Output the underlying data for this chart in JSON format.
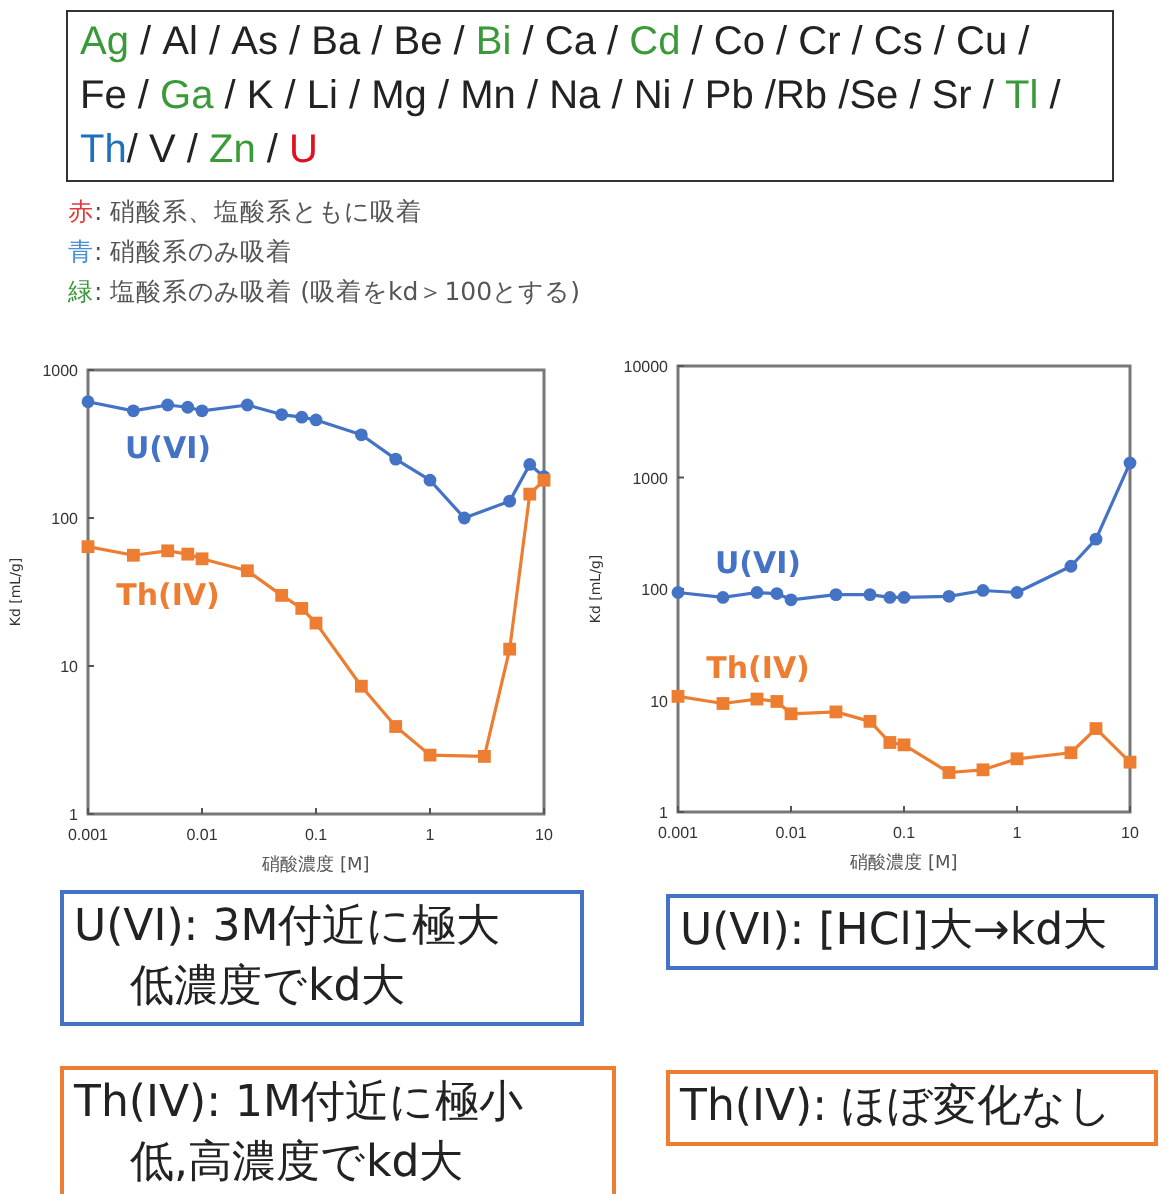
{
  "chart_data": [
    {
      "type": "other",
      "categories": [
        "Ag",
        " / ",
        "Al",
        " / ",
        "As",
        " / ",
        "Ba",
        " / ",
        "Be",
        " / ",
        "Bi",
        " / ",
        "Ca",
        " / ",
        "Cd",
        " / ",
        "Co",
        " / ",
        "Cr",
        " / ",
        "Cs",
        " / ",
        "Cu",
        " / ",
        "Fe",
        " / ",
        "Ga",
        " / ",
        "K",
        " / ",
        "Li",
        " / ",
        "Mg",
        " / ",
        "Mn",
        " / ",
        "Na",
        " / ",
        "Ni",
        " / ",
        "Pb",
        " /",
        "Rb",
        " /",
        "Se",
        " / ",
        "Sr",
        " / ",
        "Tl",
        " / ",
        "Th",
        "/ ",
        "V",
        " / ",
        "Zn",
        " / ",
        "U"
      ],
      "colors": [
        "#3a9a3a",
        "#222222",
        "#222222",
        "#222222",
        "#222222",
        "#222222",
        "#222222",
        "#222222",
        "#222222",
        "#222222",
        "#3a9a3a",
        "#222222",
        "#222222",
        "#222222",
        "#3a9a3a",
        "#222222",
        "#222222",
        "#222222",
        "#222222",
        "#222222",
        "#222222",
        "#222222",
        "#222222",
        "#222222",
        "#222222",
        "#222222",
        "#3a9a3a",
        "#222222",
        "#222222",
        "#222222",
        "#222222",
        "#222222",
        "#222222",
        "#222222",
        "#222222",
        "#222222",
        "#222222",
        "#222222",
        "#222222",
        "#222222",
        "#222222",
        "#222222",
        "#222222",
        "#222222",
        "#222222",
        "#222222",
        "#222222",
        "#222222",
        "#3a9a3a",
        "#222222",
        "#1f6fbf",
        "#222222",
        "#222222",
        "#222222",
        "#3a9a3a",
        "#222222",
        "#e01020"
      ],
      "annotations": [
        "赤: 硝酸系、塩酸系ともに吸着",
        "青: 硝酸系のみ吸着",
        "緑: 塩酸系のみ吸着 (吸着をkd＞100とする)"
      ]
    },
    {
      "type": "line",
      "xlabel": "硝酸濃度 [M]",
      "ylabel": "Kd [mL/g]",
      "log": "xy",
      "xlim": [
        0.001,
        10
      ],
      "ylim": [
        1,
        1000
      ],
      "xticks": [
        0.001,
        0.01,
        0.1,
        1,
        10
      ],
      "yticks": [
        1,
        10,
        100,
        1000
      ],
      "grid": false,
      "legend": false,
      "annotations": [
        "U(VI): 3M付近に極大低濃度でkd大",
        "Th(IV): 1M付近に極小低,高濃度でkd大"
      ],
      "series": [
        {
          "name": "U(VI)",
          "color": "#4472c4",
          "marker": "circle",
          "x": [
            0.001,
            0.0025,
            0.005,
            0.0075,
            0.01,
            0.025,
            0.05,
            0.075,
            0.1,
            0.25,
            0.5,
            1,
            2,
            5,
            7.5,
            10
          ],
          "values": [
            610,
            530,
            580,
            560,
            530,
            580,
            500,
            480,
            460,
            365,
            250,
            180,
            100,
            130,
            230,
            190
          ]
        },
        {
          "name": "Th(IV)",
          "color": "#ed7d31",
          "marker": "square",
          "x": [
            0.001,
            0.0025,
            0.005,
            0.0075,
            0.01,
            0.025,
            0.05,
            0.075,
            0.1,
            0.25,
            0.5,
            1,
            3,
            5,
            7.5,
            10
          ],
          "values": [
            64,
            56,
            60,
            57,
            53,
            44,
            30,
            24.5,
            19.5,
            7.3,
            3.9,
            2.5,
            2.45,
            13,
            145,
            180
          ]
        }
      ]
    },
    {
      "type": "line",
      "xlabel": "硝酸濃度 [M]",
      "ylabel": "Kd [mL/g]",
      "log": "xy",
      "xlim": [
        0.001,
        10
      ],
      "ylim": [
        1,
        10000
      ],
      "xticks": [
        0.001,
        0.01,
        0.1,
        1,
        10
      ],
      "yticks": [
        1,
        10,
        100,
        1000,
        10000
      ],
      "grid": false,
      "legend": false,
      "annotations": [
        "U(VI): [HCl]大→kd大",
        "Th(IV): ほぼ変化なし"
      ],
      "series": [
        {
          "name": "U(VI)",
          "color": "#4472c4",
          "marker": "circle",
          "x": [
            0.001,
            0.0025,
            0.005,
            0.0075,
            0.01,
            0.025,
            0.05,
            0.075,
            0.1,
            0.25,
            0.5,
            1,
            3,
            5,
            10
          ],
          "values": [
            93,
            84,
            93,
            91,
            80,
            89,
            89,
            84,
            84,
            86,
            97,
            93,
            160,
            280,
            1350
          ]
        },
        {
          "name": "Th(IV)",
          "color": "#ed7d31",
          "marker": "square",
          "x": [
            0.001,
            0.0025,
            0.005,
            0.0075,
            0.01,
            0.025,
            0.05,
            0.075,
            0.1,
            0.25,
            0.5,
            1,
            3,
            5,
            10
          ],
          "values": [
            10.9,
            9.4,
            10.3,
            9.8,
            7.6,
            7.9,
            6.5,
            4.2,
            4.0,
            2.26,
            2.39,
            3.0,
            3.4,
            5.6,
            2.8
          ]
        }
      ]
    }
  ]
}
